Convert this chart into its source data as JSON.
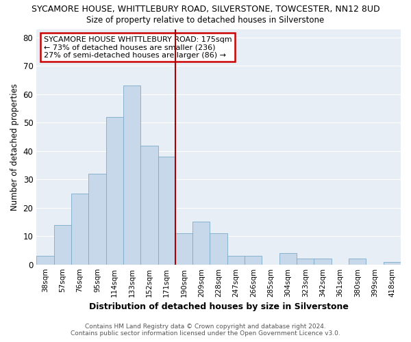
{
  "title": "SYCAMORE HOUSE, WHITTLEBURY ROAD, SILVERSTONE, TOWCESTER, NN12 8UD",
  "subtitle": "Size of property relative to detached houses in Silverstone",
  "xlabel": "Distribution of detached houses by size in Silverstone",
  "ylabel": "Number of detached properties",
  "categories": [
    "38sqm",
    "57sqm",
    "76sqm",
    "95sqm",
    "114sqm",
    "133sqm",
    "152sqm",
    "171sqm",
    "190sqm",
    "209sqm",
    "228sqm",
    "247sqm",
    "266sqm",
    "285sqm",
    "304sqm",
    "323sqm",
    "342sqm",
    "361sqm",
    "380sqm",
    "399sqm",
    "418sqm"
  ],
  "values": [
    3,
    14,
    25,
    32,
    52,
    63,
    42,
    38,
    11,
    15,
    11,
    3,
    3,
    0,
    4,
    2,
    2,
    0,
    2,
    0,
    1
  ],
  "bar_color": "#c8d8eb",
  "bar_edge_color": "#7aaac8",
  "vline_color": "#aa0000",
  "annotation_title": "SYCAMORE HOUSE WHITTLEBURY ROAD: 175sqm",
  "annotation_line1": "← 73% of detached houses are smaller (236)",
  "annotation_line2": "27% of semi-detached houses are larger (86) →",
  "annotation_box_color": "#ffffff",
  "annotation_box_edge_color": "#cc0000",
  "ylim": [
    0,
    83
  ],
  "yticks": [
    0,
    10,
    20,
    30,
    40,
    50,
    60,
    70,
    80
  ],
  "footer_line1": "Contains HM Land Registry data © Crown copyright and database right 2024.",
  "footer_line2": "Contains public sector information licensed under the Open Government Licence v3.0.",
  "background_color": "#ffffff",
  "plot_bg_color": "#e8eef5",
  "grid_color": "#ffffff"
}
